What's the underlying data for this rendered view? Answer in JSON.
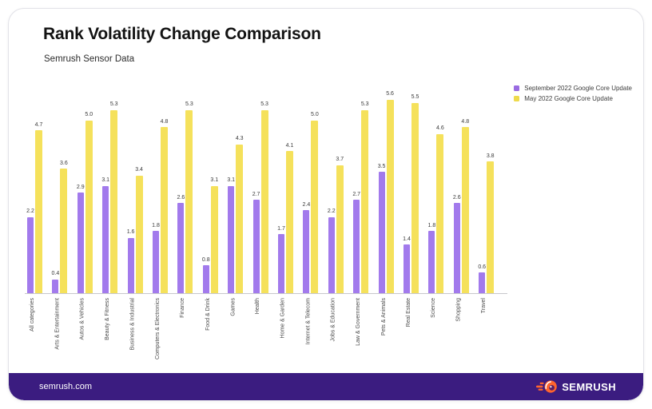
{
  "card": {
    "title": "Rank Volatility Change Comparison",
    "subtitle": "Semrush Sensor Data"
  },
  "chart_data": {
    "type": "bar",
    "title": "Rank Volatility Change Comparison",
    "subtitle": "Semrush Sensor Data",
    "categories": [
      "All categories",
      "Arts & Entertainment",
      "Autos & Vehicles",
      "Beauty & Fitness",
      "Business & Industrial",
      "Computers & Electronics",
      "Finance",
      "Food & Drink",
      "Games",
      "Health",
      "Home & Garden",
      "Internet & Telecom",
      "Jobs & Education",
      "Law & Government",
      "Pets & Animals",
      "Real Estate",
      "Science",
      "Shopping",
      "Travel"
    ],
    "series": [
      {
        "name": "September 2022 Google Core Update",
        "color": "#a27aec",
        "legend_color": "#9a6be2",
        "values": [
          2.2,
          0.4,
          2.9,
          3.1,
          1.6,
          1.8,
          2.6,
          0.8,
          3.1,
          2.7,
          1.7,
          2.4,
          2.2,
          2.7,
          3.5,
          1.4,
          1.8,
          2.6,
          0.6
        ]
      },
      {
        "name": "May 2022 Google Core Update",
        "color": "#f5e15b",
        "legend_color": "#eeda4c",
        "values": [
          4.7,
          3.6,
          5.0,
          5.3,
          3.4,
          4.8,
          5.3,
          3.1,
          4.3,
          5.3,
          4.1,
          5.0,
          3.7,
          5.3,
          5.6,
          5.5,
          4.6,
          4.8,
          3.8
        ]
      }
    ],
    "ylim": [
      0,
      6
    ],
    "grid": false,
    "value_labels": "one_decimal_above_each_bar",
    "legend_position": "top-right",
    "xlabel": "",
    "ylabel": ""
  },
  "footer": {
    "site": "semrush.com",
    "brand": "SEMRUSH",
    "background": "#3b1c80",
    "logo_color": "#ff642d"
  }
}
